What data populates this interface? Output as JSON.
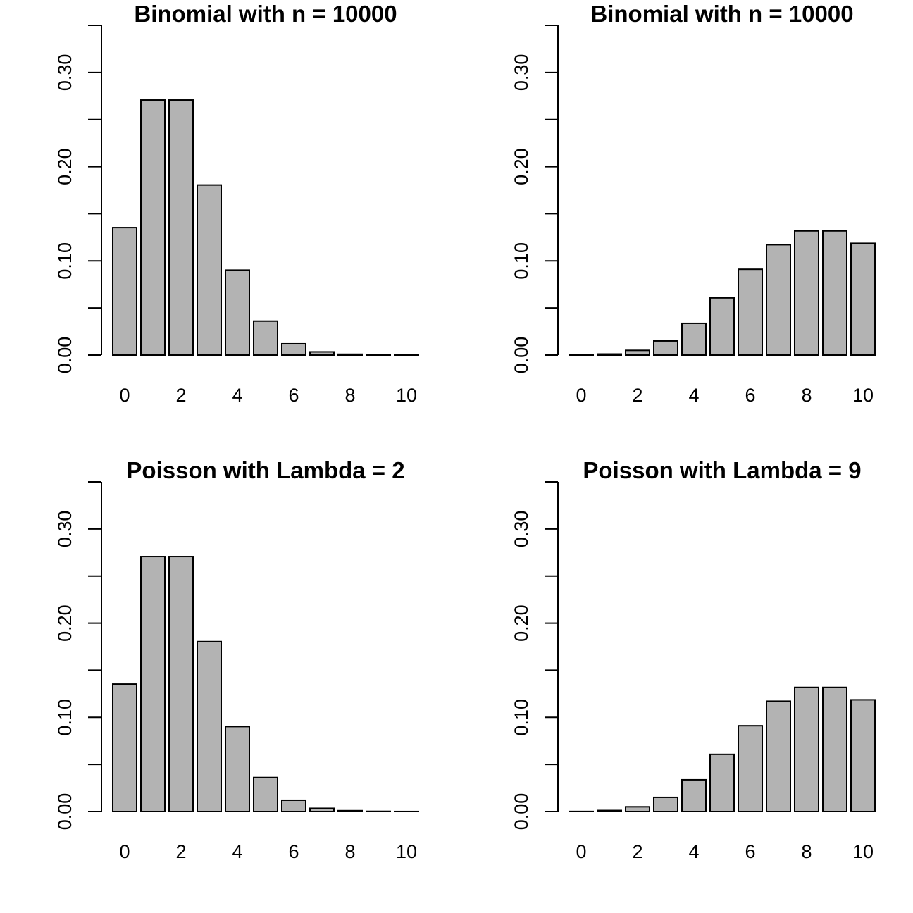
{
  "bar_color": "#b3b3b3",
  "chart_data": [
    {
      "type": "bar",
      "title": "Binomial with n =  10000",
      "xlabel": "",
      "ylabel": "",
      "categories": [
        "0",
        "1",
        "2",
        "3",
        "4",
        "5",
        "6",
        "7",
        "8",
        "9",
        "10"
      ],
      "x_tick_labels": [
        "0",
        "2",
        "4",
        "6",
        "8",
        "10"
      ],
      "y_tick_labels": [
        "0.00",
        "0.10",
        "0.20",
        "0.30"
      ],
      "values": [
        0.1353,
        0.2707,
        0.2707,
        0.1805,
        0.0902,
        0.0361,
        0.012,
        0.0034,
        0.0009,
        0.0002,
        4e-05
      ],
      "ylim": [
        0,
        0.35
      ],
      "grid": false
    },
    {
      "type": "bar",
      "title": "Binomial with n =  10000",
      "xlabel": "",
      "ylabel": "",
      "categories": [
        "0",
        "1",
        "2",
        "3",
        "4",
        "5",
        "6",
        "7",
        "8",
        "9",
        "10"
      ],
      "x_tick_labels": [
        "0",
        "2",
        "4",
        "6",
        "8",
        "10"
      ],
      "y_tick_labels": [
        "0.00",
        "0.10",
        "0.20",
        "0.30"
      ],
      "values": [
        0.0001,
        0.0011,
        0.005,
        0.015,
        0.0337,
        0.0607,
        0.0911,
        0.1171,
        0.1318,
        0.1318,
        0.1186
      ],
      "ylim": [
        0,
        0.35
      ],
      "grid": false
    },
    {
      "type": "bar",
      "title": "Poisson with Lambda =  2",
      "xlabel": "",
      "ylabel": "",
      "categories": [
        "0",
        "1",
        "2",
        "3",
        "4",
        "5",
        "6",
        "7",
        "8",
        "9",
        "10"
      ],
      "x_tick_labels": [
        "0",
        "2",
        "4",
        "6",
        "8",
        "10"
      ],
      "y_tick_labels": [
        "0.00",
        "0.10",
        "0.20",
        "0.30"
      ],
      "values": [
        0.1353,
        0.2707,
        0.2707,
        0.1804,
        0.0902,
        0.0361,
        0.012,
        0.0034,
        0.0009,
        0.0002,
        4e-05
      ],
      "ylim": [
        0,
        0.35
      ],
      "grid": false
    },
    {
      "type": "bar",
      "title": "Poisson with Lambda =  9",
      "xlabel": "",
      "ylabel": "",
      "categories": [
        "0",
        "1",
        "2",
        "3",
        "4",
        "5",
        "6",
        "7",
        "8",
        "9",
        "10"
      ],
      "x_tick_labels": [
        "0",
        "2",
        "4",
        "6",
        "8",
        "10"
      ],
      "y_tick_labels": [
        "0.00",
        "0.10",
        "0.20",
        "0.30"
      ],
      "values": [
        0.0001,
        0.0011,
        0.005,
        0.015,
        0.0337,
        0.0607,
        0.0911,
        0.1171,
        0.1318,
        0.1318,
        0.1186
      ],
      "ylim": [
        0,
        0.35
      ],
      "grid": false
    }
  ]
}
